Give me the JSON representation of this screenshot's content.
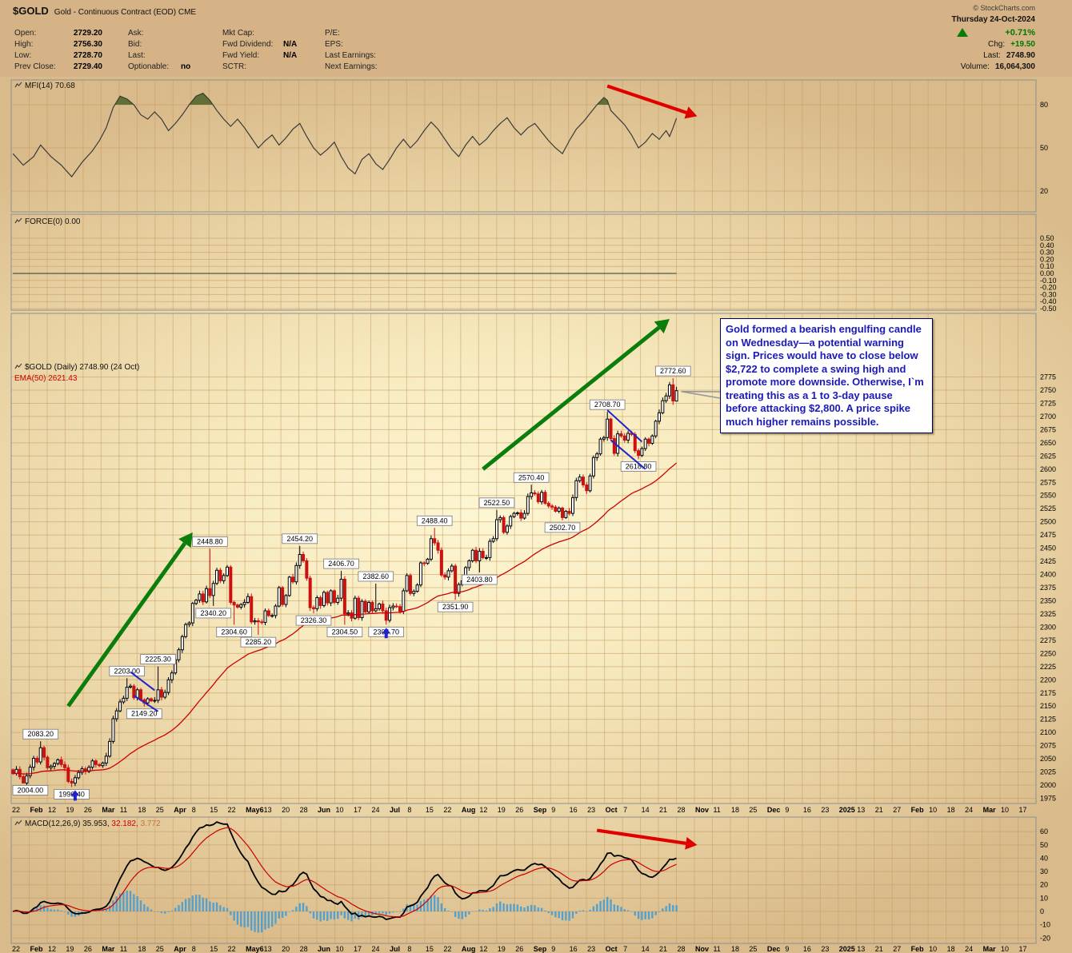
{
  "meta": {
    "symbol": "$GOLD",
    "name": "Gold - Continuous Contract (EOD) CME",
    "copyright": "© StockCharts.com",
    "date": "Thursday 24-Oct-2024"
  },
  "quote": {
    "columns": [
      [
        {
          "label": "Open:",
          "value": "2729.20"
        },
        {
          "label": "High:",
          "value": "2756.30"
        },
        {
          "label": "Low:",
          "value": "2728.70"
        },
        {
          "label": "Prev Close:",
          "value": "2729.40"
        }
      ],
      [
        {
          "label": "Ask:",
          "value": ""
        },
        {
          "label": "Bid:",
          "value": ""
        },
        {
          "label": "Last:",
          "value": ""
        },
        {
          "label": "Optionable:",
          "value": "no"
        }
      ],
      [
        {
          "label": "Mkt Cap:",
          "value": ""
        },
        {
          "label": "Fwd Dividend:",
          "value": "N/A"
        },
        {
          "label": "Fwd Yield:",
          "value": "N/A"
        },
        {
          "label": "SCTR:",
          "value": ""
        }
      ],
      [
        {
          "label": "P/E:",
          "value": ""
        },
        {
          "label": "EPS:",
          "value": ""
        },
        {
          "label": "Last Earnings:",
          "value": ""
        },
        {
          "label": "Next Earnings:",
          "value": ""
        }
      ]
    ],
    "change_pct": "+0.71%",
    "chg_label": "Chg:",
    "chg_value": "+19.50",
    "last_label": "Last:",
    "last_value": "2748.90",
    "volume_label": "Volume:",
    "volume_value": "16,064,300"
  },
  "annotation": {
    "text": "Gold formed a bearish engulfing candle on Wednesday—a potential warning sign. Prices would have to close below $2,722 to complete a swing high and promote more downside. Otherwise, I`m treating this as a 1 to 3-day pause before attacking $2,800. A price spike much higher remains possible."
  },
  "colors": {
    "up": "#000000",
    "up_fill": "#ffffff",
    "down": "#cc1111",
    "ema": "#cc0000",
    "grid": "#c59a5d",
    "panel_border": "#8f8f8f",
    "mfi_line": "#3a3a3a",
    "mfi_fill": "#5a6b2f",
    "macd_line": "#000000",
    "macd_signal": "#cc0000",
    "macd_hist": "#55a0cc",
    "arrow_green": "#0a7d0a",
    "arrow_red": "#e00000",
    "blue": "#2222cc",
    "callout_border": "#777777",
    "text": "#000000"
  },
  "chart_data": [
    {
      "panel": "mfi",
      "type": "line",
      "title": "MFI(14) 70.68",
      "ylim": [
        0,
        100
      ],
      "yticks": [
        "80",
        "50",
        "20"
      ],
      "overbought_level": 80,
      "points": [
        [
          0,
          46
        ],
        [
          3,
          38
        ],
        [
          6,
          44
        ],
        [
          8,
          52
        ],
        [
          11,
          44
        ],
        [
          14,
          38
        ],
        [
          17,
          30
        ],
        [
          20,
          40
        ],
        [
          23,
          48
        ],
        [
          25,
          55
        ],
        [
          27,
          64
        ],
        [
          29,
          78
        ],
        [
          31,
          86
        ],
        [
          33,
          84
        ],
        [
          35,
          80
        ],
        [
          37,
          73
        ],
        [
          39,
          70
        ],
        [
          41,
          75
        ],
        [
          43,
          70
        ],
        [
          45,
          62
        ],
        [
          47,
          67
        ],
        [
          49,
          73
        ],
        [
          51,
          80
        ],
        [
          53,
          86
        ],
        [
          55,
          88
        ],
        [
          57,
          83
        ],
        [
          59,
          76
        ],
        [
          61,
          70
        ],
        [
          63,
          65
        ],
        [
          65,
          70
        ],
        [
          67,
          64
        ],
        [
          69,
          57
        ],
        [
          71,
          50
        ],
        [
          73,
          55
        ],
        [
          75,
          59
        ],
        [
          77,
          52
        ],
        [
          79,
          57
        ],
        [
          81,
          63
        ],
        [
          83,
          67
        ],
        [
          85,
          58
        ],
        [
          87,
          50
        ],
        [
          89,
          45
        ],
        [
          91,
          49
        ],
        [
          93,
          54
        ],
        [
          95,
          44
        ],
        [
          97,
          36
        ],
        [
          99,
          32
        ],
        [
          101,
          42
        ],
        [
          103,
          46
        ],
        [
          105,
          39
        ],
        [
          107,
          35
        ],
        [
          109,
          42
        ],
        [
          111,
          50
        ],
        [
          113,
          56
        ],
        [
          115,
          50
        ],
        [
          117,
          55
        ],
        [
          119,
          62
        ],
        [
          121,
          68
        ],
        [
          123,
          63
        ],
        [
          125,
          56
        ],
        [
          127,
          49
        ],
        [
          129,
          44
        ],
        [
          131,
          52
        ],
        [
          133,
          58
        ],
        [
          135,
          52
        ],
        [
          137,
          56
        ],
        [
          139,
          62
        ],
        [
          141,
          67
        ],
        [
          143,
          71
        ],
        [
          145,
          64
        ],
        [
          147,
          59
        ],
        [
          149,
          64
        ],
        [
          151,
          67
        ],
        [
          153,
          61
        ],
        [
          155,
          55
        ],
        [
          157,
          50
        ],
        [
          159,
          46
        ],
        [
          161,
          55
        ],
        [
          163,
          63
        ],
        [
          165,
          68
        ],
        [
          167,
          74
        ],
        [
          169,
          80
        ],
        [
          171,
          85
        ],
        [
          172,
          83
        ],
        [
          173,
          76
        ],
        [
          175,
          71
        ],
        [
          177,
          66
        ],
        [
          179,
          59
        ],
        [
          181,
          50
        ],
        [
          183,
          54
        ],
        [
          185,
          60
        ],
        [
          187,
          56
        ],
        [
          189,
          62
        ],
        [
          190,
          58
        ],
        [
          191,
          64
        ],
        [
          192,
          70.68
        ]
      ],
      "arrow": {
        "from": [
          172,
          93
        ],
        "to": [
          198,
          72
        ],
        "color": "red"
      }
    },
    {
      "panel": "force",
      "type": "line",
      "title": "FORCE(0) 0.00",
      "ylim": [
        -0.55,
        0.55
      ],
      "yticks": [
        "0.50",
        "0.40",
        "0.30",
        "0.20",
        "0.10",
        "0.00",
        "-0.10",
        "-0.20",
        "-0.30",
        "-0.40",
        "-0.50"
      ],
      "points": [
        [
          0,
          0.0
        ],
        [
          192,
          0.0
        ]
      ]
    },
    {
      "panel": "main",
      "type": "candlestick",
      "title": "$GOLD (Daily) 2748.90 (24 Oct)",
      "ema_label": "EMA(50) 2621.43",
      "ema_period": 50,
      "ylim": [
        1975,
        2775
      ],
      "ystep": 25,
      "first_open": 2029,
      "closes": [
        2022,
        2030,
        2016,
        2004,
        2018,
        2034,
        2051,
        2044,
        2071,
        2053,
        2033,
        2036,
        2041,
        2048,
        2039,
        2033,
        2007,
        2004,
        2014,
        2024,
        2031,
        2026,
        2034,
        2046,
        2039,
        2037,
        2042,
        2055,
        2083,
        2126,
        2141,
        2158,
        2165,
        2186,
        2188,
        2166,
        2181,
        2162,
        2156,
        2164,
        2160,
        2161,
        2181,
        2167,
        2176,
        2200,
        2213,
        2238,
        2257,
        2282,
        2305,
        2308,
        2345,
        2351,
        2363,
        2348,
        2373,
        2360,
        2383,
        2408,
        2388,
        2398,
        2414,
        2347,
        2342,
        2338,
        2343,
        2347,
        2358,
        2310,
        2312,
        2310,
        2309,
        2331,
        2322,
        2322,
        2340,
        2375,
        2343,
        2360,
        2395,
        2386,
        2417,
        2438,
        2426,
        2393,
        2337,
        2335,
        2356,
        2341,
        2366,
        2346,
        2369,
        2347,
        2355,
        2391,
        2325,
        2327,
        2317,
        2355,
        2318,
        2349,
        2329,
        2347,
        2331,
        2335,
        2344,
        2331,
        2313,
        2337,
        2340,
        2339,
        2330,
        2369,
        2398,
        2364,
        2368,
        2380,
        2422,
        2421,
        2429,
        2468,
        2460,
        2446,
        2399,
        2395,
        2407,
        2416,
        2364,
        2381,
        2388,
        2413,
        2426,
        2446,
        2426,
        2444,
        2432,
        2432,
        2463,
        2468,
        2504,
        2508,
        2480,
        2492,
        2510,
        2516,
        2517,
        2507,
        2516,
        2548,
        2555,
        2553,
        2538,
        2556,
        2535,
        2530,
        2528,
        2520,
        2526,
        2508,
        2520,
        2516,
        2546,
        2578,
        2585,
        2570,
        2559,
        2587,
        2622,
        2629,
        2657,
        2660,
        2695,
        2658,
        2630,
        2667,
        2663,
        2655,
        2668,
        2666,
        2635,
        2626,
        2639,
        2657,
        2649,
        2663,
        2691,
        2707,
        2730,
        2739,
        2760,
        2729.4,
        2748.9
      ],
      "overrides": {
        "3": {
          "l": 2004.0
        },
        "8": {
          "h": 2083.2
        },
        "17": {
          "l": 1996.4
        },
        "33": {
          "h": 2203.0
        },
        "38": {
          "l": 2149.2
        },
        "42": {
          "h": 2225.3
        },
        "57": {
          "h": 2448.8
        },
        "58": {
          "l": 2340.2
        },
        "64": {
          "l": 2304.6
        },
        "71": {
          "l": 2285.2
        },
        "83": {
          "h": 2454.2
        },
        "87": {
          "l": 2326.3
        },
        "95": {
          "h": 2406.7
        },
        "96": {
          "l": 2304.5
        },
        "105": {
          "h": 2382.6
        },
        "108": {
          "l": 2304.7
        },
        "122": {
          "h": 2488.4
        },
        "128": {
          "l": 2351.9
        },
        "135": {
          "l": 2403.8
        },
        "140": {
          "h": 2522.5
        },
        "150": {
          "h": 2570.4
        },
        "159": {
          "l": 2502.7
        },
        "172": {
          "h": 2708.7
        },
        "181": {
          "l": 2618.8
        },
        "191": {
          "h": 2772.6,
          "l": 2722.0
        },
        "192": {
          "o": 2729.2,
          "h": 2756.3,
          "l": 2728.7
        }
      },
      "callouts": [
        {
          "d": 3,
          "p": 2004.0,
          "side": "low",
          "text": "2004.00"
        },
        {
          "d": 8,
          "p": 2083.2,
          "side": "high",
          "text": "2083.20"
        },
        {
          "d": 17,
          "p": 1996.4,
          "side": "low",
          "text": "1996.40"
        },
        {
          "d": 33,
          "p": 2203.0,
          "side": "high",
          "text": "2203.00"
        },
        {
          "d": 38,
          "p": 2149.2,
          "side": "low",
          "text": "2149.20"
        },
        {
          "d": 42,
          "p": 2225.3,
          "side": "high",
          "text": "2225.30"
        },
        {
          "d": 57,
          "p": 2448.8,
          "side": "high",
          "text": "2448.80"
        },
        {
          "d": 58,
          "p": 2340.2,
          "side": "low",
          "text": "2340.20"
        },
        {
          "d": 64,
          "p": 2304.6,
          "side": "low",
          "text": "2304.60"
        },
        {
          "d": 71,
          "p": 2285.2,
          "side": "low",
          "text": "2285.20"
        },
        {
          "d": 83,
          "p": 2454.2,
          "side": "high",
          "text": "2454.20"
        },
        {
          "d": 87,
          "p": 2326.3,
          "side": "low",
          "text": "2326.30"
        },
        {
          "d": 95,
          "p": 2406.7,
          "side": "high",
          "text": "2406.70"
        },
        {
          "d": 96,
          "p": 2304.5,
          "side": "low",
          "text": "2304.50"
        },
        {
          "d": 105,
          "p": 2382.6,
          "side": "high",
          "text": "2382.60"
        },
        {
          "d": 108,
          "p": 2304.7,
          "side": "low",
          "text": "2304.70"
        },
        {
          "d": 122,
          "p": 2488.4,
          "side": "high",
          "text": "2488.40"
        },
        {
          "d": 128,
          "p": 2351.9,
          "side": "low",
          "text": "2351.90"
        },
        {
          "d": 135,
          "p": 2403.8,
          "side": "low",
          "text": "2403.80"
        },
        {
          "d": 140,
          "p": 2522.5,
          "side": "high",
          "text": "2522.50"
        },
        {
          "d": 150,
          "p": 2570.4,
          "side": "high",
          "text": "2570.40"
        },
        {
          "d": 159,
          "p": 2502.7,
          "side": "low",
          "text": "2502.70"
        },
        {
          "d": 172,
          "p": 2708.7,
          "side": "high",
          "text": "2708.70"
        },
        {
          "d": 181,
          "p": 2618.8,
          "side": "low",
          "text": "2618.80"
        },
        {
          "d": 191,
          "p": 2772.6,
          "side": "high",
          "text": "2772.60"
        }
      ],
      "arrows": [
        {
          "from": [
            16,
            2150
          ],
          "to": [
            52,
            2480
          ],
          "color": "green"
        },
        {
          "from": [
            136,
            2600
          ],
          "to": [
            190,
            2885
          ],
          "color": "green"
        }
      ],
      "channels": [
        [
          34,
          2215,
          41,
          2180
        ],
        [
          35,
          2170,
          42,
          2140
        ],
        [
          172,
          2712,
          182,
          2652
        ],
        [
          173,
          2655,
          183,
          2600
        ]
      ],
      "markers": [
        {
          "d": 18,
          "p": 1996.4
        },
        {
          "d": 108,
          "p": 2304.7
        }
      ],
      "xlabels": [
        "22",
        "Feb",
        "12",
        "19",
        "26",
        "Mar",
        "11",
        "18",
        "25",
        "Apr",
        "8",
        "15",
        "22",
        "May6",
        "13",
        "20",
        "28",
        "Jun",
        "10",
        "17",
        "24",
        "Jul",
        "8",
        "15",
        "22",
        "Aug",
        "12",
        "19",
        "26",
        "Sep",
        "9",
        "16",
        "23",
        "Oct",
        "7",
        "14",
        "21",
        "28",
        "Nov",
        "11",
        "18",
        "25",
        "Dec",
        "9",
        "16",
        "23",
        "2025",
        "13",
        "21",
        "27",
        "Feb",
        "10",
        "18",
        "24",
        "Mar",
        "10",
        "17"
      ]
    },
    {
      "panel": "macd",
      "type": "macd",
      "legend": {
        "label": "MACD(12,26,9)",
        "v1": "35.953,",
        "v2": "32.182,",
        "v3": "3.772"
      },
      "params": [
        12,
        26,
        9
      ],
      "yticks": [
        "60",
        "50",
        "40",
        "30",
        "20",
        "10",
        "0",
        "-10",
        "-20"
      ],
      "arrow": {
        "from": [
          169,
          61
        ],
        "to": [
          198,
          50
        ],
        "color": "red"
      }
    }
  ]
}
